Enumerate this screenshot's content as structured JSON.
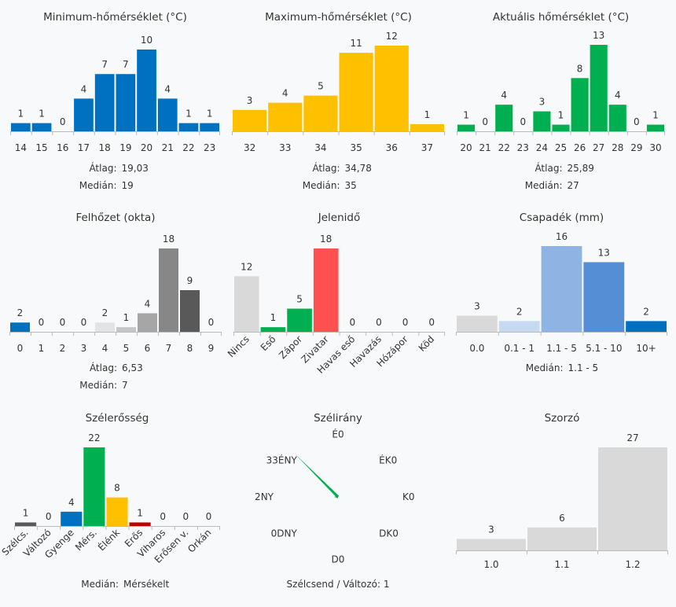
{
  "chart_data": [
    {
      "type": "bar",
      "title": "Minimum-hőmérséklet (°C)",
      "categories": [
        "14",
        "15",
        "16",
        "17",
        "18",
        "19",
        "20",
        "21",
        "22",
        "23"
      ],
      "values": [
        1,
        1,
        0,
        4,
        7,
        7,
        10,
        4,
        1,
        1
      ],
      "colors": [
        "#0070c0"
      ],
      "stats": [
        {
          "label": "Átlag:",
          "value": "19,03"
        },
        {
          "label": "Medián:",
          "value": "19"
        }
      ]
    },
    {
      "type": "bar",
      "title": "Maximum-hőmérséklet (°C)",
      "categories": [
        "32",
        "33",
        "34",
        "35",
        "36",
        "37"
      ],
      "values": [
        3,
        4,
        5,
        11,
        12,
        1
      ],
      "colors": [
        "#ffc000"
      ],
      "stats": [
        {
          "label": "Átlag:",
          "value": "34,78"
        },
        {
          "label": "Medián:",
          "value": "35"
        }
      ]
    },
    {
      "type": "bar",
      "title": "Aktuális hőmérséklet (°C)",
      "categories": [
        "20",
        "21",
        "22",
        "23",
        "24",
        "25",
        "26",
        "27",
        "28",
        "29",
        "30"
      ],
      "values": [
        1,
        0,
        4,
        0,
        3,
        1,
        8,
        13,
        4,
        0,
        1
      ],
      "colors": [
        "#00b050"
      ],
      "stats": [
        {
          "label": "Átlag:",
          "value": "25,89"
        },
        {
          "label": "Medián:",
          "value": "27"
        }
      ]
    },
    {
      "type": "bar",
      "title": "Felhőzet (okta)",
      "categories": [
        "0",
        "1",
        "2",
        "3",
        "4",
        "5",
        "6",
        "7",
        "8",
        "9"
      ],
      "values": [
        2,
        0,
        0,
        0,
        2,
        1,
        4,
        18,
        9,
        0
      ],
      "colors": [
        "#0070c0",
        "#d9d9d9",
        "#d9d9d9",
        "#d9d9d9",
        "#e3e3e3",
        "#c6c6c6",
        "#a6a6a6",
        "#878787",
        "#595959",
        "#404040"
      ],
      "stats": [
        {
          "label": "Átlag:",
          "value": "6,53"
        },
        {
          "label": "Medián:",
          "value": "7"
        }
      ]
    },
    {
      "type": "bar",
      "title": "Jelenidő",
      "categories": [
        "Nincs",
        "Eső",
        "Zápor",
        "Zivatar",
        "Havas eső",
        "Havazás",
        "Hózápor",
        "Köd"
      ],
      "values": [
        12,
        1,
        5,
        18,
        0,
        0,
        0,
        0
      ],
      "colors": [
        "#d9d9d9",
        "#00b050",
        "#00b050",
        "#ff5050",
        "#d9d9d9",
        "#d9d9d9",
        "#d9d9d9",
        "#d9d9d9"
      ],
      "rotated_labels": true,
      "stats": []
    },
    {
      "type": "bar",
      "title": "Csapadék (mm)",
      "categories": [
        "0.0",
        "0.1 - 1",
        "1.1 - 5",
        "5.1 - 10",
        "10+"
      ],
      "values": [
        3,
        2,
        16,
        13,
        2
      ],
      "colors": [
        "#d9d9d9",
        "#c5d9f1",
        "#8db4e2",
        "#558ed5",
        "#0070c0"
      ],
      "stats": [
        {
          "label": "Medián:",
          "value": "1.1 - 5"
        }
      ]
    },
    {
      "type": "bar",
      "title": "Szélerősség",
      "categories": [
        "Szélcs.",
        "Változó",
        "Gyenge",
        "Mérs.",
        "Élénk",
        "Erős",
        "Viharos",
        "Erősen v.",
        "Orkán"
      ],
      "values": [
        1,
        0,
        4,
        22,
        8,
        1,
        0,
        0,
        0
      ],
      "colors": [
        "#595959",
        "#d9d9d9",
        "#0070c0",
        "#00b050",
        "#ffc000",
        "#c00000",
        "#d9d9d9",
        "#d9d9d9",
        "#d9d9d9"
      ],
      "rotated_labels": true,
      "stats": [
        {
          "label": "Medián:",
          "value": "Mérsékelt"
        }
      ]
    },
    {
      "type": "radar",
      "title": "Szélirány",
      "directions": [
        {
          "label": "É",
          "value": 0
        },
        {
          "label": "ÉK",
          "value": 0
        },
        {
          "label": "K",
          "value": 0
        },
        {
          "label": "DK",
          "value": 0
        },
        {
          "label": "D",
          "value": 0
        },
        {
          "label": "DNY",
          "value": 0
        },
        {
          "label": "NY",
          "value": 2
        },
        {
          "label": "ÉNY",
          "value": 33
        }
      ],
      "line_color": "#00b050",
      "footer": "Szélcsend / Változó: 1"
    },
    {
      "type": "bar",
      "title": "Szorzó",
      "categories": [
        "1.0",
        "1.1",
        "1.2"
      ],
      "values": [
        3,
        6,
        27
      ],
      "colors": [
        "#d9d9d9"
      ],
      "stats": []
    }
  ]
}
